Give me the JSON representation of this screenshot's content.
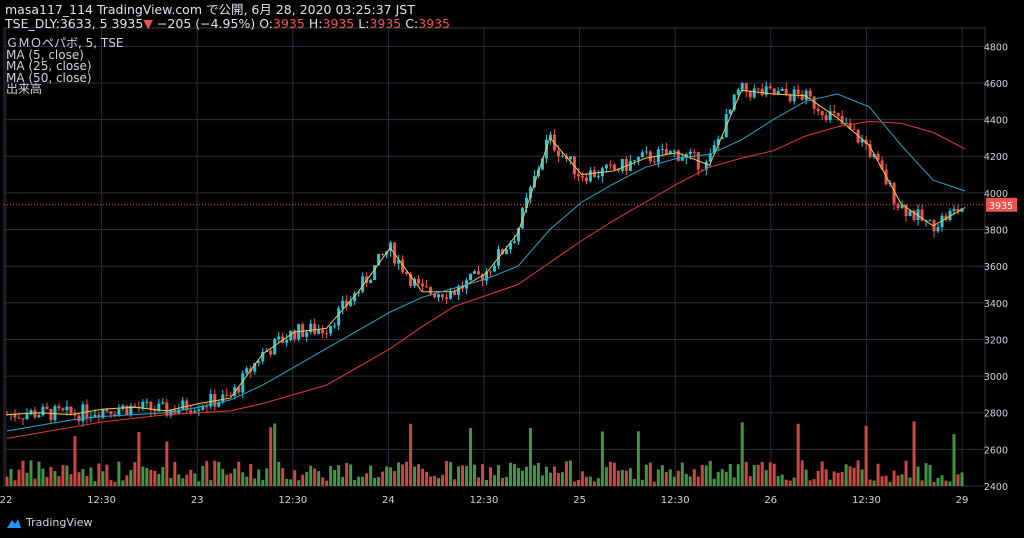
{
  "header": {
    "line1": "masa117_114 TradingView.com で公開, 6月 28, 2020 03:25:37 JST",
    "symbol": "TSE_DLY:3633, 5",
    "last": "3935",
    "change": "−205 (−4.95%)",
    "o_label": "O:",
    "o": "3935",
    "h_label": "H:",
    "h": "3935",
    "l_label": "L:",
    "l": "3935",
    "c_label": "C:",
    "c": "3935"
  },
  "legend": [
    "ＧＭＯペパボ, 5, TSE",
    "MA (5, close)",
    "MA (25, close)",
    "MA (50, close)",
    "出来高"
  ],
  "brand": "TradingView",
  "colors": {
    "background": "#000000",
    "grid": "#2a2e39",
    "up": "#26c6da",
    "down": "#ef5350",
    "vol_up": "#4caf50",
    "vol_down": "#ef5350",
    "ma5": "#f2c94c",
    "ma25": "#26a6c8",
    "ma50": "#e53935",
    "price_line": "#ef5350"
  },
  "chart_data": {
    "type": "line",
    "ylim": [
      2400,
      4900
    ],
    "yticks": [
      2400,
      2600,
      2800,
      3000,
      3200,
      3400,
      3600,
      3800,
      4000,
      4200,
      4400,
      4600,
      4800
    ],
    "xticks": [
      "22",
      "12:30",
      "23",
      "12:30",
      "24",
      "12:30",
      "25",
      "12:30",
      "26",
      "12:30",
      "29"
    ],
    "last_price": 3935,
    "series": [
      {
        "name": "MA (5, close)",
        "values": [
          2790,
          2800,
          2790,
          2820,
          2830,
          2810,
          2850,
          2880,
          3120,
          3240,
          3260,
          3460,
          3700,
          3460,
          3460,
          3560,
          3780,
          4300,
          4100,
          4120,
          4190,
          4220,
          4150,
          4560,
          4540,
          4530,
          4410,
          4260,
          3940,
          3820,
          3920
        ]
      },
      {
        "name": "MA (25, close)",
        "values": [
          2700,
          2730,
          2760,
          2780,
          2790,
          2800,
          2830,
          2870,
          2950,
          3050,
          3150,
          3250,
          3350,
          3430,
          3480,
          3530,
          3600,
          3800,
          3950,
          4050,
          4140,
          4190,
          4210,
          4290,
          4400,
          4500,
          4540,
          4470,
          4260,
          4070,
          4010
        ]
      },
      {
        "name": "MA (50, close)",
        "values": [
          2660,
          2690,
          2720,
          2750,
          2770,
          2790,
          2800,
          2810,
          2850,
          2900,
          2950,
          3050,
          3150,
          3270,
          3380,
          3440,
          3500,
          3620,
          3740,
          3850,
          3950,
          4050,
          4140,
          4190,
          4230,
          4310,
          4360,
          4390,
          4380,
          4330,
          4240
        ]
      }
    ]
  }
}
